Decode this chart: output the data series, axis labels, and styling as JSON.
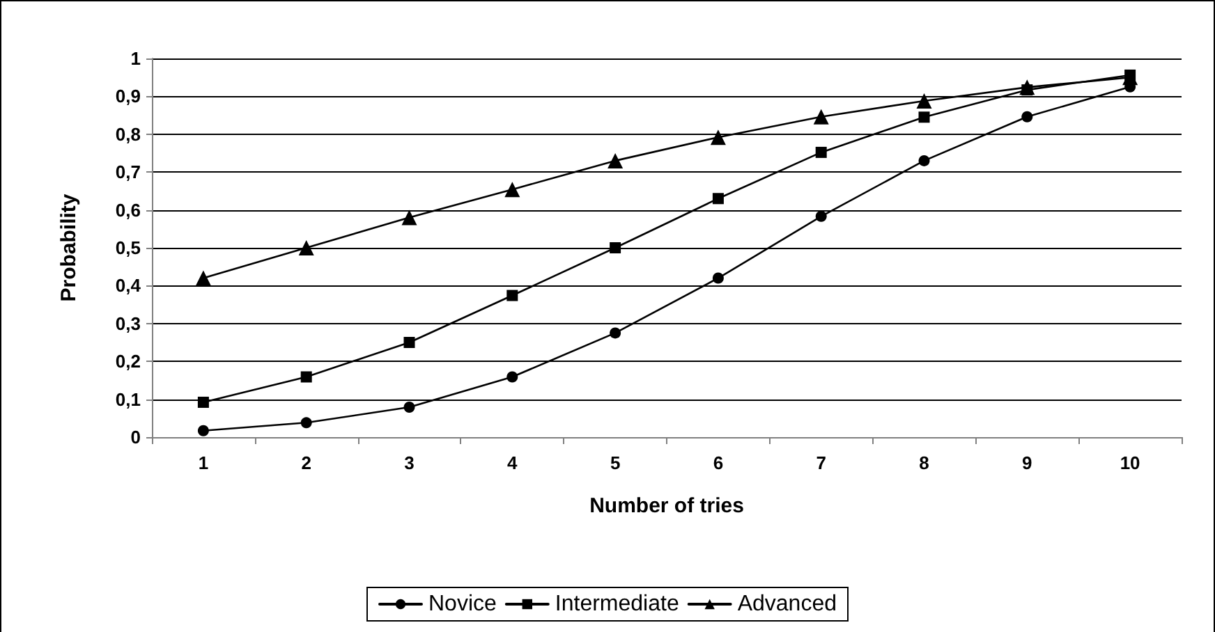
{
  "chart_data": {
    "type": "line",
    "xlabel": "Number of tries",
    "ylabel": "Probability",
    "categories": [
      "1",
      "2",
      "3",
      "4",
      "5",
      "6",
      "7",
      "8",
      "9",
      "10"
    ],
    "series": [
      {
        "name": "Novice",
        "color": "#000000",
        "marker": "circle",
        "values": [
          0.017,
          0.038,
          0.079,
          0.159,
          0.275,
          0.42,
          0.583,
          0.73,
          0.846,
          0.925
        ]
      },
      {
        "name": "Intermediate",
        "color": "#000000",
        "marker": "square",
        "values": [
          0.092,
          0.159,
          0.25,
          0.374,
          0.5,
          0.63,
          0.752,
          0.845,
          0.917,
          0.956
        ]
      },
      {
        "name": "Advanced",
        "color": "#000000",
        "marker": "triangle",
        "values": [
          0.42,
          0.5,
          0.58,
          0.654,
          0.73,
          0.792,
          0.846,
          0.888,
          0.924,
          0.95
        ]
      }
    ],
    "ylim": [
      0,
      1
    ],
    "yticks": [
      0,
      {
        "value": 0.1,
        "label": "0,1"
      },
      {
        "value": 0.2,
        "label": "0,2"
      },
      {
        "value": 0.3,
        "label": "0,3"
      },
      {
        "value": 0.4,
        "label": "0,4"
      },
      {
        "value": 0.5,
        "label": "0,5"
      },
      {
        "value": 0.6,
        "label": "0,6"
      },
      {
        "value": 0.7,
        "label": "0,7"
      },
      {
        "value": 0.8,
        "label": "0,8"
      },
      {
        "value": 0.9,
        "label": "0,9"
      },
      1
    ],
    "grid": "y",
    "legend": "bottom",
    "line_style": "solid"
  }
}
